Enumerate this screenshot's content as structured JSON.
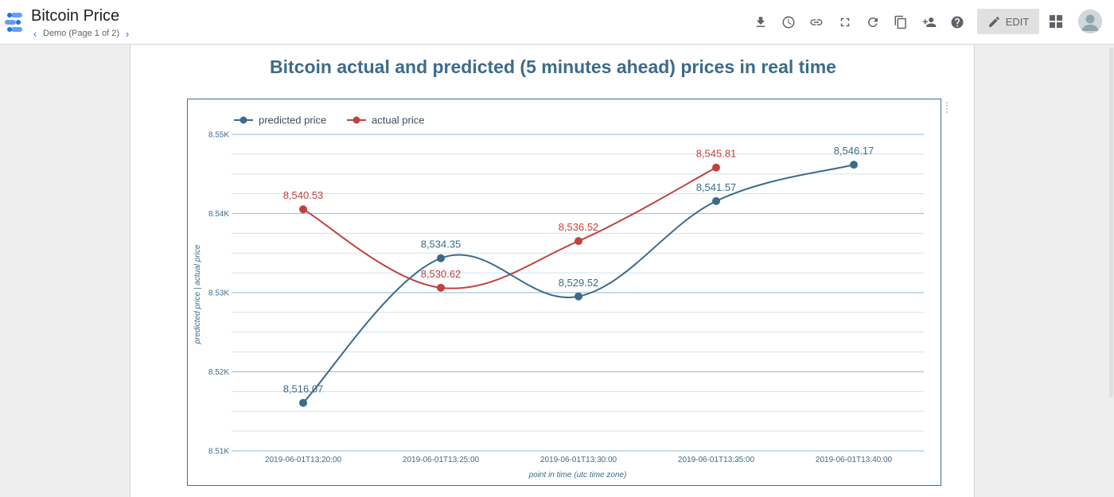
{
  "header": {
    "app_title": "Bitcoin Price",
    "page_label": "Demo (Page 1 of 2)",
    "edit_label": "EDIT"
  },
  "toolbar_icons": [
    "download-icon",
    "history-icon",
    "link-icon",
    "fullscreen-icon",
    "refresh-icon",
    "copy-icon",
    "share-icon",
    "help-icon"
  ],
  "report": {
    "title": "Bitcoin actual and predicted (5 minutes ahead) prices in real time"
  },
  "colors": {
    "predicted": "#3a6b8c",
    "actual": "#c0423f",
    "title": "#3d6b8a",
    "frame": "#3b6f98"
  },
  "chart_data": {
    "type": "line",
    "x": [
      "2019-06-01T13:20:00",
      "2019-06-01T13:25:00",
      "2019-06-01T13:30:00",
      "2019-06-01T13:35:00",
      "2019-06-01T13:40:00"
    ],
    "series": [
      {
        "name": "predicted price",
        "values": [
          8516.07,
          8534.35,
          8529.52,
          8541.57,
          8546.17
        ],
        "labels": [
          "8,516.07",
          "8,534.35",
          "8,529.52",
          "8,541.57",
          "8,546.17"
        ]
      },
      {
        "name": "actual price",
        "values": [
          8540.53,
          8530.62,
          8536.52,
          8545.81,
          null
        ],
        "labels": [
          "8,540.53",
          "8,530.62",
          "8,536.52",
          "8,545.81",
          ""
        ]
      }
    ],
    "xlabel": "point in time (utc time zone)",
    "ylabel": "predicted price | actual price",
    "ylim": [
      8510,
      8550
    ],
    "yticks": [
      8510,
      8520,
      8530,
      8540,
      8550
    ],
    "ytick_labels": [
      "8.51K",
      "8.52K",
      "8.53K",
      "8.54K",
      "8.55K"
    ],
    "legend_position": "top-left",
    "smooth": true,
    "grid": true
  }
}
